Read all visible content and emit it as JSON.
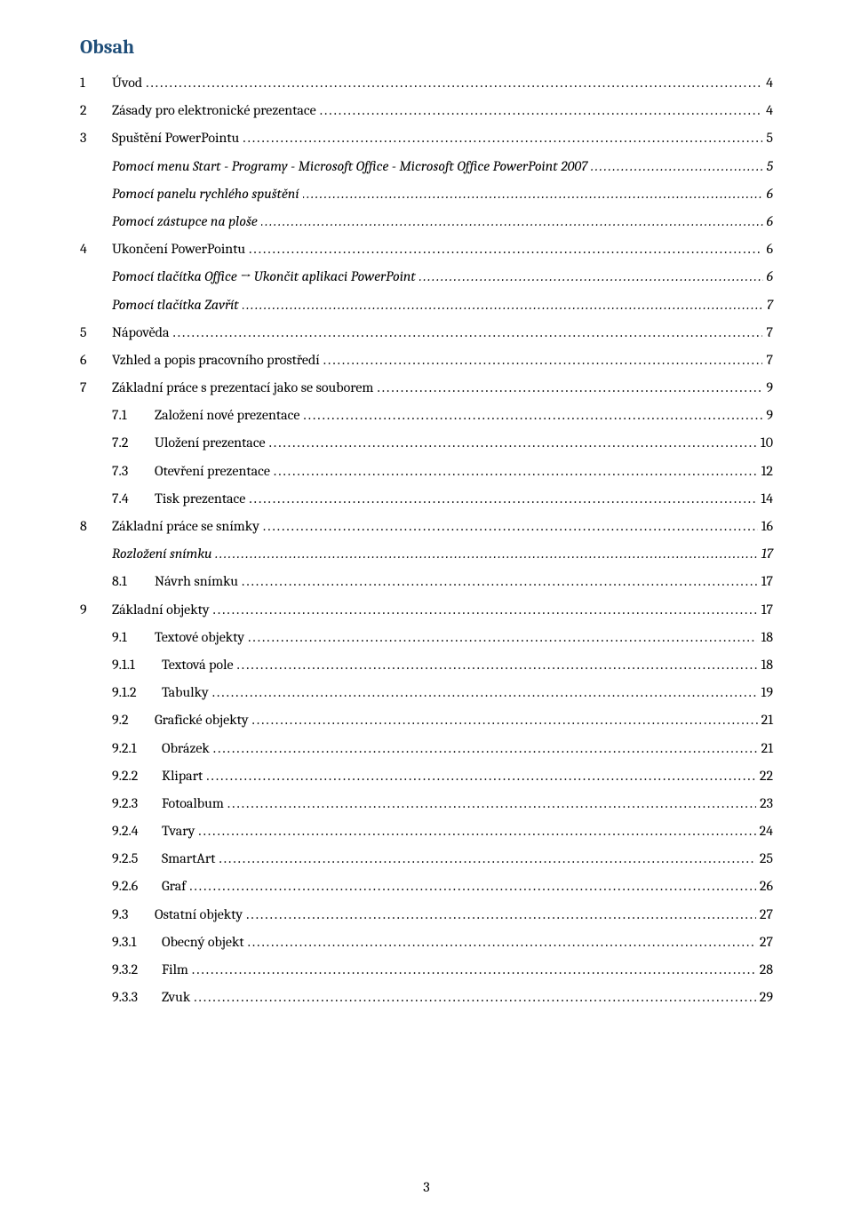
{
  "title": {
    "text": "Obsah",
    "color": "#1f4e79"
  },
  "pageNumber": "3",
  "entries": [
    {
      "level": "lvl1",
      "num": "1",
      "text": "Úvod",
      "page": "4"
    },
    {
      "level": "lvl1",
      "num": "2",
      "text": "Zásady pro elektronické prezentace",
      "page": "4"
    },
    {
      "level": "lvl1",
      "num": "3",
      "text": "Spuštění PowerPointu",
      "page": "5"
    },
    {
      "level": "lvl1i",
      "num": "",
      "text": "Pomocí menu Start - Programy - Microsoft Office - Microsoft Office PowerPoint 2007",
      "page": "5"
    },
    {
      "level": "lvl1i",
      "num": "",
      "text": "Pomocí panelu rychlého spuštění",
      "page": "6"
    },
    {
      "level": "lvl1i",
      "num": "",
      "text": "Pomocí zástupce na ploše",
      "page": "6"
    },
    {
      "level": "lvl1",
      "num": "4",
      "text": "Ukončení PowerPointu",
      "page": "6"
    },
    {
      "level": "lvl1i",
      "num": "",
      "text": "Pomocí tlačítka Office → Ukončit aplikaci PowerPoint",
      "page": "6"
    },
    {
      "level": "lvl1i",
      "num": "",
      "text": "Pomocí tlačítka Zavřít",
      "page": "7"
    },
    {
      "level": "lvl1",
      "num": "5",
      "text": "Nápověda",
      "page": "7"
    },
    {
      "level": "lvl1",
      "num": "6",
      "text": "Vzhled a popis pracovního prostředí",
      "page": "7"
    },
    {
      "level": "lvl1",
      "num": "7",
      "text": "Základní práce s prezentací jako se souborem",
      "page": "9"
    },
    {
      "level": "lvl2",
      "num": "7.1",
      "text": "Založení nové prezentace",
      "page": "9"
    },
    {
      "level": "lvl2",
      "num": "7.2",
      "text": "Uložení prezentace",
      "page": "10"
    },
    {
      "level": "lvl2",
      "num": "7.3",
      "text": "Otevření prezentace",
      "page": "12"
    },
    {
      "level": "lvl2",
      "num": "7.4",
      "text": "Tisk prezentace",
      "page": "14"
    },
    {
      "level": "lvl1",
      "num": "8",
      "text": "Základní práce se snímky",
      "page": "16"
    },
    {
      "level": "lvl2i",
      "num": "",
      "text": "Rozložení snímku",
      "page": "17"
    },
    {
      "level": "lvl2",
      "num": "8.1",
      "text": "Návrh snímku",
      "page": "17"
    },
    {
      "level": "lvl1",
      "num": "9",
      "text": "Základní objekty",
      "page": "17"
    },
    {
      "level": "lvl2",
      "num": "9.1",
      "text": "Textové objekty",
      "page": "18"
    },
    {
      "level": "lvl3",
      "num": "9.1.1",
      "text": "Textová pole",
      "page": "18"
    },
    {
      "level": "lvl3",
      "num": "9.1.2",
      "text": "Tabulky",
      "page": "19"
    },
    {
      "level": "lvl2",
      "num": "9.2",
      "text": "Grafické objekty",
      "page": "21"
    },
    {
      "level": "lvl3",
      "num": "9.2.1",
      "text": "Obrázek",
      "page": "21"
    },
    {
      "level": "lvl3",
      "num": "9.2.2",
      "text": "Klipart",
      "page": "22"
    },
    {
      "level": "lvl3",
      "num": "9.2.3",
      "text": "Fotoalbum",
      "page": "23"
    },
    {
      "level": "lvl3",
      "num": "9.2.4",
      "text": "Tvary",
      "page": "24"
    },
    {
      "level": "lvl3",
      "num": "9.2.5",
      "text": "SmartArt",
      "page": "25"
    },
    {
      "level": "lvl3",
      "num": "9.2.6",
      "text": "Graf",
      "page": "26"
    },
    {
      "level": "lvl2",
      "num": "9.3",
      "text": "Ostatní objekty",
      "page": "27"
    },
    {
      "level": "lvl3",
      "num": "9.3.1",
      "text": "Obecný objekt",
      "page": "27"
    },
    {
      "level": "lvl3",
      "num": "9.3.2",
      "text": "Film",
      "page": "28"
    },
    {
      "level": "lvl3",
      "num": "9.3.3",
      "text": "Zvuk",
      "page": "29"
    }
  ]
}
